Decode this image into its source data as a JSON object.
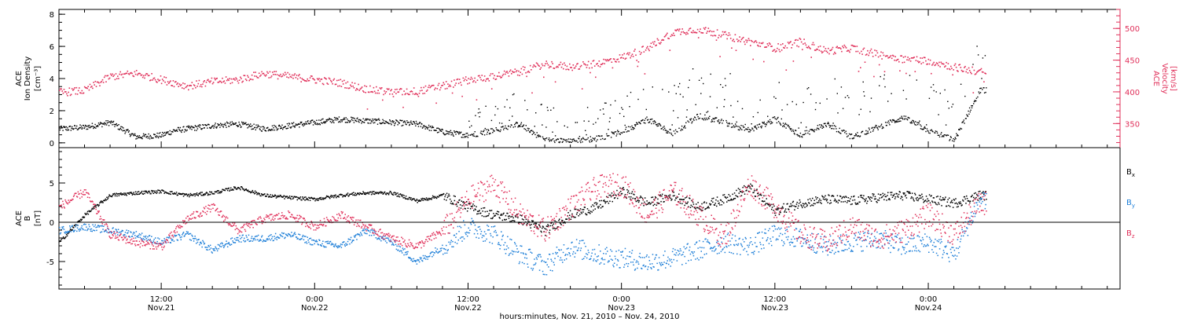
{
  "chart_data": [
    {
      "type": "scatter",
      "panel": "ace-plasma",
      "ylabel_left": [
        "ACE",
        "Ion Density",
        "[cm⁻³]"
      ],
      "ylabel_right": [
        "ACE",
        "Velocity",
        "[km/s]"
      ],
      "left_axis": {
        "ylim": [
          -0.3,
          8.3
        ],
        "ticks": [
          "0",
          "2",
          "4",
          "6",
          "8"
        ],
        "color": "#000000"
      },
      "right_axis": {
        "ylim": [
          312,
          530
        ],
        "ticks": [
          "350",
          "400",
          "450",
          "500"
        ],
        "color": "#e0305a"
      },
      "series": [
        {
          "axis": "left",
          "color": "#000000",
          "points_per_day_hour": "hours since 2010-11-21 00:00",
          "x": [
            4,
            6,
            8,
            10,
            12,
            13,
            14,
            16,
            18,
            20,
            22,
            24,
            26,
            28,
            30,
            32,
            34,
            36,
            38,
            40,
            42,
            44,
            46,
            48,
            50,
            52,
            54,
            56,
            58,
            60,
            62,
            64,
            66,
            68,
            70,
            72,
            74,
            76
          ],
          "y": [
            0.9,
            1.0,
            1.3,
            0.4,
            0.5,
            0.8,
            0.9,
            1.1,
            1.2,
            0.9,
            1.1,
            1.3,
            1.5,
            1.4,
            1.3,
            1.2,
            0.7,
            0.5,
            0.8,
            1.2,
            0.2,
            0.1,
            0.3,
            0.7,
            1.5,
            0.6,
            1.7,
            1.3,
            0.8,
            1.5,
            0.5,
            1.2,
            0.4,
            1.0,
            1.6,
            0.8,
            0.2,
            3.3
          ]
        },
        {
          "axis": "right",
          "color": "#e0305a",
          "x": [
            4,
            6,
            8,
            10,
            12,
            14,
            16,
            18,
            20,
            22,
            24,
            26,
            28,
            30,
            32,
            34,
            36,
            38,
            40,
            42,
            44,
            46,
            48,
            50,
            52,
            54,
            56,
            58,
            60,
            62,
            64,
            66,
            68,
            70,
            72,
            74,
            76
          ],
          "y": [
            400,
            403,
            425,
            430,
            420,
            410,
            417,
            420,
            430,
            425,
            420,
            415,
            405,
            400,
            402,
            410,
            420,
            425,
            433,
            445,
            440,
            445,
            455,
            470,
            495,
            500,
            490,
            480,
            470,
            480,
            465,
            470,
            460,
            453,
            450,
            440,
            432
          ]
        }
      ]
    },
    {
      "type": "scatter",
      "panel": "ace-magnetic-field",
      "ylabel_left": [
        "ACE",
        "B",
        "[nT]"
      ],
      "ylim": [
        -8.5,
        9.5
      ],
      "ticks": [
        "-5",
        "0",
        "5"
      ],
      "legend": [
        {
          "label": "B",
          "sub": "x",
          "color": "#000000"
        },
        {
          "label": "B",
          "sub": "y",
          "color": "#1e7fd8"
        },
        {
          "label": "B",
          "sub": "z",
          "color": "#e0305a"
        }
      ],
      "series": [
        {
          "name": "Bx",
          "color": "#000000",
          "x": [
            4,
            6,
            8,
            10,
            12,
            14,
            16,
            18,
            20,
            22,
            24,
            26,
            28,
            30,
            32,
            34,
            36,
            38,
            40,
            42,
            44,
            46,
            48,
            50,
            52,
            54,
            56,
            58,
            60,
            62,
            64,
            66,
            68,
            70,
            72,
            74,
            76
          ],
          "y": [
            -2.5,
            1.0,
            3.5,
            3.8,
            4.0,
            3.5,
            3.8,
            4.5,
            3.5,
            3.2,
            3.0,
            3.5,
            3.8,
            3.8,
            2.8,
            3.5,
            2.0,
            1.0,
            0.5,
            -1.0,
            1.0,
            2.0,
            4.0,
            2.5,
            3.5,
            2.0,
            3.0,
            4.5,
            1.5,
            2.5,
            3.0,
            2.8,
            3.2,
            3.5,
            3.0,
            2.5,
            3.5
          ]
        },
        {
          "name": "By",
          "color": "#1e7fd8",
          "x": [
            4,
            6,
            8,
            10,
            12,
            14,
            16,
            18,
            20,
            22,
            24,
            26,
            28,
            30,
            32,
            34,
            36,
            38,
            40,
            42,
            44,
            46,
            48,
            50,
            52,
            54,
            56,
            58,
            60,
            62,
            64,
            66,
            68,
            70,
            72,
            74,
            76
          ],
          "y": [
            -1.0,
            -0.5,
            -1.0,
            -1.5,
            -2.5,
            -1.5,
            -3.5,
            -2.0,
            -2.0,
            -1.5,
            -2.5,
            -3.0,
            -1.0,
            -2.5,
            -5.0,
            -3.0,
            -0.5,
            -1.5,
            -4.0,
            -5.5,
            -3.0,
            -4.0,
            -4.5,
            -5.0,
            -4.5,
            -3.5,
            -2.5,
            -3.0,
            -1.5,
            -2.0,
            -3.0,
            -2.5,
            -2.0,
            -3.0,
            -2.5,
            -4.0,
            3.0
          ]
        },
        {
          "name": "Bz",
          "color": "#e0305a",
          "x": [
            4,
            6,
            8,
            10,
            12,
            14,
            16,
            18,
            20,
            22,
            24,
            26,
            28,
            30,
            32,
            34,
            36,
            38,
            40,
            42,
            44,
            46,
            48,
            50,
            52,
            54,
            56,
            58,
            60,
            62,
            64,
            66,
            68,
            70,
            72,
            74,
            76
          ],
          "y": [
            2.0,
            4.0,
            -1.5,
            -2.5,
            -3.0,
            0.5,
            2.0,
            -1.0,
            0.5,
            1.0,
            -0.5,
            1.0,
            -0.5,
            -2.0,
            -3.0,
            -1.0,
            3.0,
            5.0,
            1.0,
            -1.0,
            2.0,
            4.5,
            5.0,
            1.0,
            4.0,
            1.0,
            -2.0,
            5.0,
            2.0,
            -1.5,
            -2.5,
            -0.5,
            -2.0,
            -1.0,
            1.0,
            -1.5,
            2.5
          ]
        }
      ]
    }
  ],
  "x_axis": {
    "xlim_hours": [
      4,
      87
    ],
    "ticks": [
      {
        "hour": 12,
        "time": "12:00",
        "date": "Nov.21"
      },
      {
        "hour": 24,
        "time": "0:00",
        "date": "Nov.22"
      },
      {
        "hour": 36,
        "time": "12:00",
        "date": "Nov.22"
      },
      {
        "hour": 48,
        "time": "0:00",
        "date": "Nov.23"
      },
      {
        "hour": 60,
        "time": "12:00",
        "date": "Nov.23"
      },
      {
        "hour": 72,
        "time": "0:00",
        "date": "Nov.24"
      }
    ],
    "xlabel": "hours:minutes, Nov. 21, 2010 – Nov. 24, 2010"
  }
}
